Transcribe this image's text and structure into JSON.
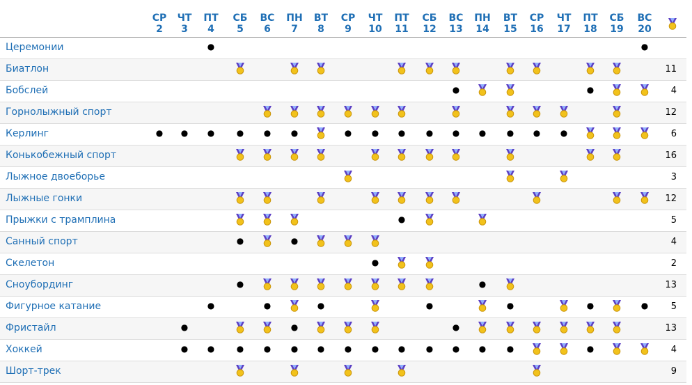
{
  "header": {
    "days": [
      {
        "dow": "СР",
        "day": "2"
      },
      {
        "dow": "ЧТ",
        "day": "3"
      },
      {
        "dow": "ПТ",
        "day": "4"
      },
      {
        "dow": "СБ",
        "day": "5"
      },
      {
        "dow": "ВС",
        "day": "6"
      },
      {
        "dow": "ПН",
        "day": "7"
      },
      {
        "dow": "ВТ",
        "day": "8"
      },
      {
        "dow": "СР",
        "day": "9"
      },
      {
        "dow": "ЧТ",
        "day": "10"
      },
      {
        "dow": "ПТ",
        "day": "11"
      },
      {
        "dow": "СБ",
        "day": "12"
      },
      {
        "dow": "ВС",
        "day": "13"
      },
      {
        "dow": "ПН",
        "day": "14"
      },
      {
        "dow": "ВТ",
        "day": "15"
      },
      {
        "dow": "СР",
        "day": "16"
      },
      {
        "dow": "ЧТ",
        "day": "17"
      },
      {
        "dow": "ПТ",
        "day": "18"
      },
      {
        "dow": "СБ",
        "day": "19"
      },
      {
        "dow": "ВС",
        "day": "20"
      }
    ],
    "total": "🏅"
  },
  "table": {
    "rows": [
      {
        "name": "Церемонии",
        "cells": [
          null,
          null,
          "●",
          null,
          null,
          null,
          null,
          null,
          null,
          null,
          null,
          null,
          null,
          null,
          null,
          null,
          null,
          null,
          "●"
        ],
        "total": null
      },
      {
        "name": "Биатлон",
        "cells": [
          null,
          null,
          null,
          "🏅",
          null,
          "🏅",
          "🏅",
          null,
          null,
          "🏅",
          "🏅",
          "🏅",
          null,
          "🏅",
          "🏅",
          null,
          "🏅",
          "🏅",
          null
        ],
        "total": "11"
      },
      {
        "name": "Бобслей",
        "cells": [
          null,
          null,
          null,
          null,
          null,
          null,
          null,
          null,
          null,
          null,
          null,
          "●",
          "🏅",
          "🏅",
          null,
          null,
          "●",
          "🏅",
          "🏅"
        ],
        "total": "4"
      },
      {
        "name": "Горнолыжный спорт",
        "cells": [
          null,
          null,
          null,
          null,
          "🏅",
          "🏅",
          "🏅",
          "🏅",
          "🏅",
          "🏅",
          null,
          "🏅",
          null,
          "🏅",
          "🏅",
          "🏅",
          null,
          "🏅",
          null
        ],
        "total": "12"
      },
      {
        "name": "Керлинг",
        "cells": [
          "●",
          "●",
          "●",
          "●",
          "●",
          "●",
          "🏅",
          "●",
          "●",
          "●",
          "●",
          "●",
          "●",
          "●",
          "●",
          "●",
          "🏅",
          "🏅",
          "🏅"
        ],
        "total": "6"
      },
      {
        "name": "Конькобежный спорт",
        "cells": [
          null,
          null,
          null,
          "🏅",
          "🏅",
          "🏅",
          "🏅",
          null,
          "🏅",
          "🏅",
          "🏅",
          "🏅",
          null,
          "🏅",
          null,
          null,
          "🏅",
          "🏅",
          null
        ],
        "total": "16"
      },
      {
        "name": "Лыжное двоеборье",
        "cells": [
          null,
          null,
          null,
          null,
          null,
          null,
          null,
          "🏅",
          null,
          null,
          null,
          null,
          null,
          "🏅",
          null,
          "🏅",
          null,
          null,
          null
        ],
        "total": "3"
      },
      {
        "name": "Лыжные гонки",
        "cells": [
          null,
          null,
          null,
          "🏅",
          "🏅",
          null,
          "🏅",
          null,
          "🏅",
          "🏅",
          "🏅",
          "🏅",
          null,
          null,
          "🏅",
          null,
          null,
          "🏅",
          "🏅"
        ],
        "total": "12"
      },
      {
        "name": "Прыжки с трамплина",
        "cells": [
          null,
          null,
          null,
          "🏅",
          "🏅",
          "🏅",
          null,
          null,
          null,
          "●",
          "🏅",
          null,
          "🏅",
          null,
          null,
          null,
          null,
          null,
          null
        ],
        "total": "5"
      },
      {
        "name": "Санный спорт",
        "cells": [
          null,
          null,
          null,
          "●",
          "🏅",
          "●",
          "🏅",
          "🏅",
          "🏅",
          null,
          null,
          null,
          null,
          null,
          null,
          null,
          null,
          null,
          null
        ],
        "total": "4"
      },
      {
        "name": "Скелетон",
        "cells": [
          null,
          null,
          null,
          null,
          null,
          null,
          null,
          null,
          "●",
          "🏅",
          "🏅",
          null,
          null,
          null,
          null,
          null,
          null,
          null,
          null
        ],
        "total": "2"
      },
      {
        "name": "Сноубординг",
        "cells": [
          null,
          null,
          null,
          "●",
          "🏅",
          "🏅",
          "🏅",
          "🏅",
          "🏅",
          "🏅",
          "🏅",
          null,
          "●",
          "🏅",
          null,
          null,
          null,
          null,
          null
        ],
        "total": "13"
      },
      {
        "name": "Фигурное катание",
        "cells": [
          null,
          null,
          "●",
          null,
          "●",
          "🏅",
          "●",
          null,
          "🏅",
          null,
          "●",
          null,
          "🏅",
          "●",
          null,
          "🏅",
          "●",
          "🏅",
          "●"
        ],
        "total": "5"
      },
      {
        "name": "Фристайл",
        "cells": [
          null,
          "●",
          null,
          "🏅",
          "🏅",
          "●",
          "🏅",
          "🏅",
          "🏅",
          null,
          null,
          "●",
          "🏅",
          "🏅",
          "🏅",
          "🏅",
          "🏅",
          "🏅",
          null
        ],
        "total": "13"
      },
      {
        "name": "Хоккей",
        "cells": [
          null,
          "●",
          "●",
          "●",
          "●",
          "●",
          "●",
          "●",
          "●",
          "●",
          "●",
          "●",
          "●",
          "●",
          "🏅",
          "🏅",
          "●",
          "🏅",
          "🏅"
        ],
        "total": "4"
      },
      {
        "name": "Шорт-трек",
        "cells": [
          null,
          null,
          null,
          "🏅",
          null,
          "🏅",
          null,
          "🏅",
          null,
          "🏅",
          null,
          null,
          null,
          null,
          "🏅",
          null,
          null,
          null,
          null
        ],
        "total": "9"
      }
    ]
  }
}
